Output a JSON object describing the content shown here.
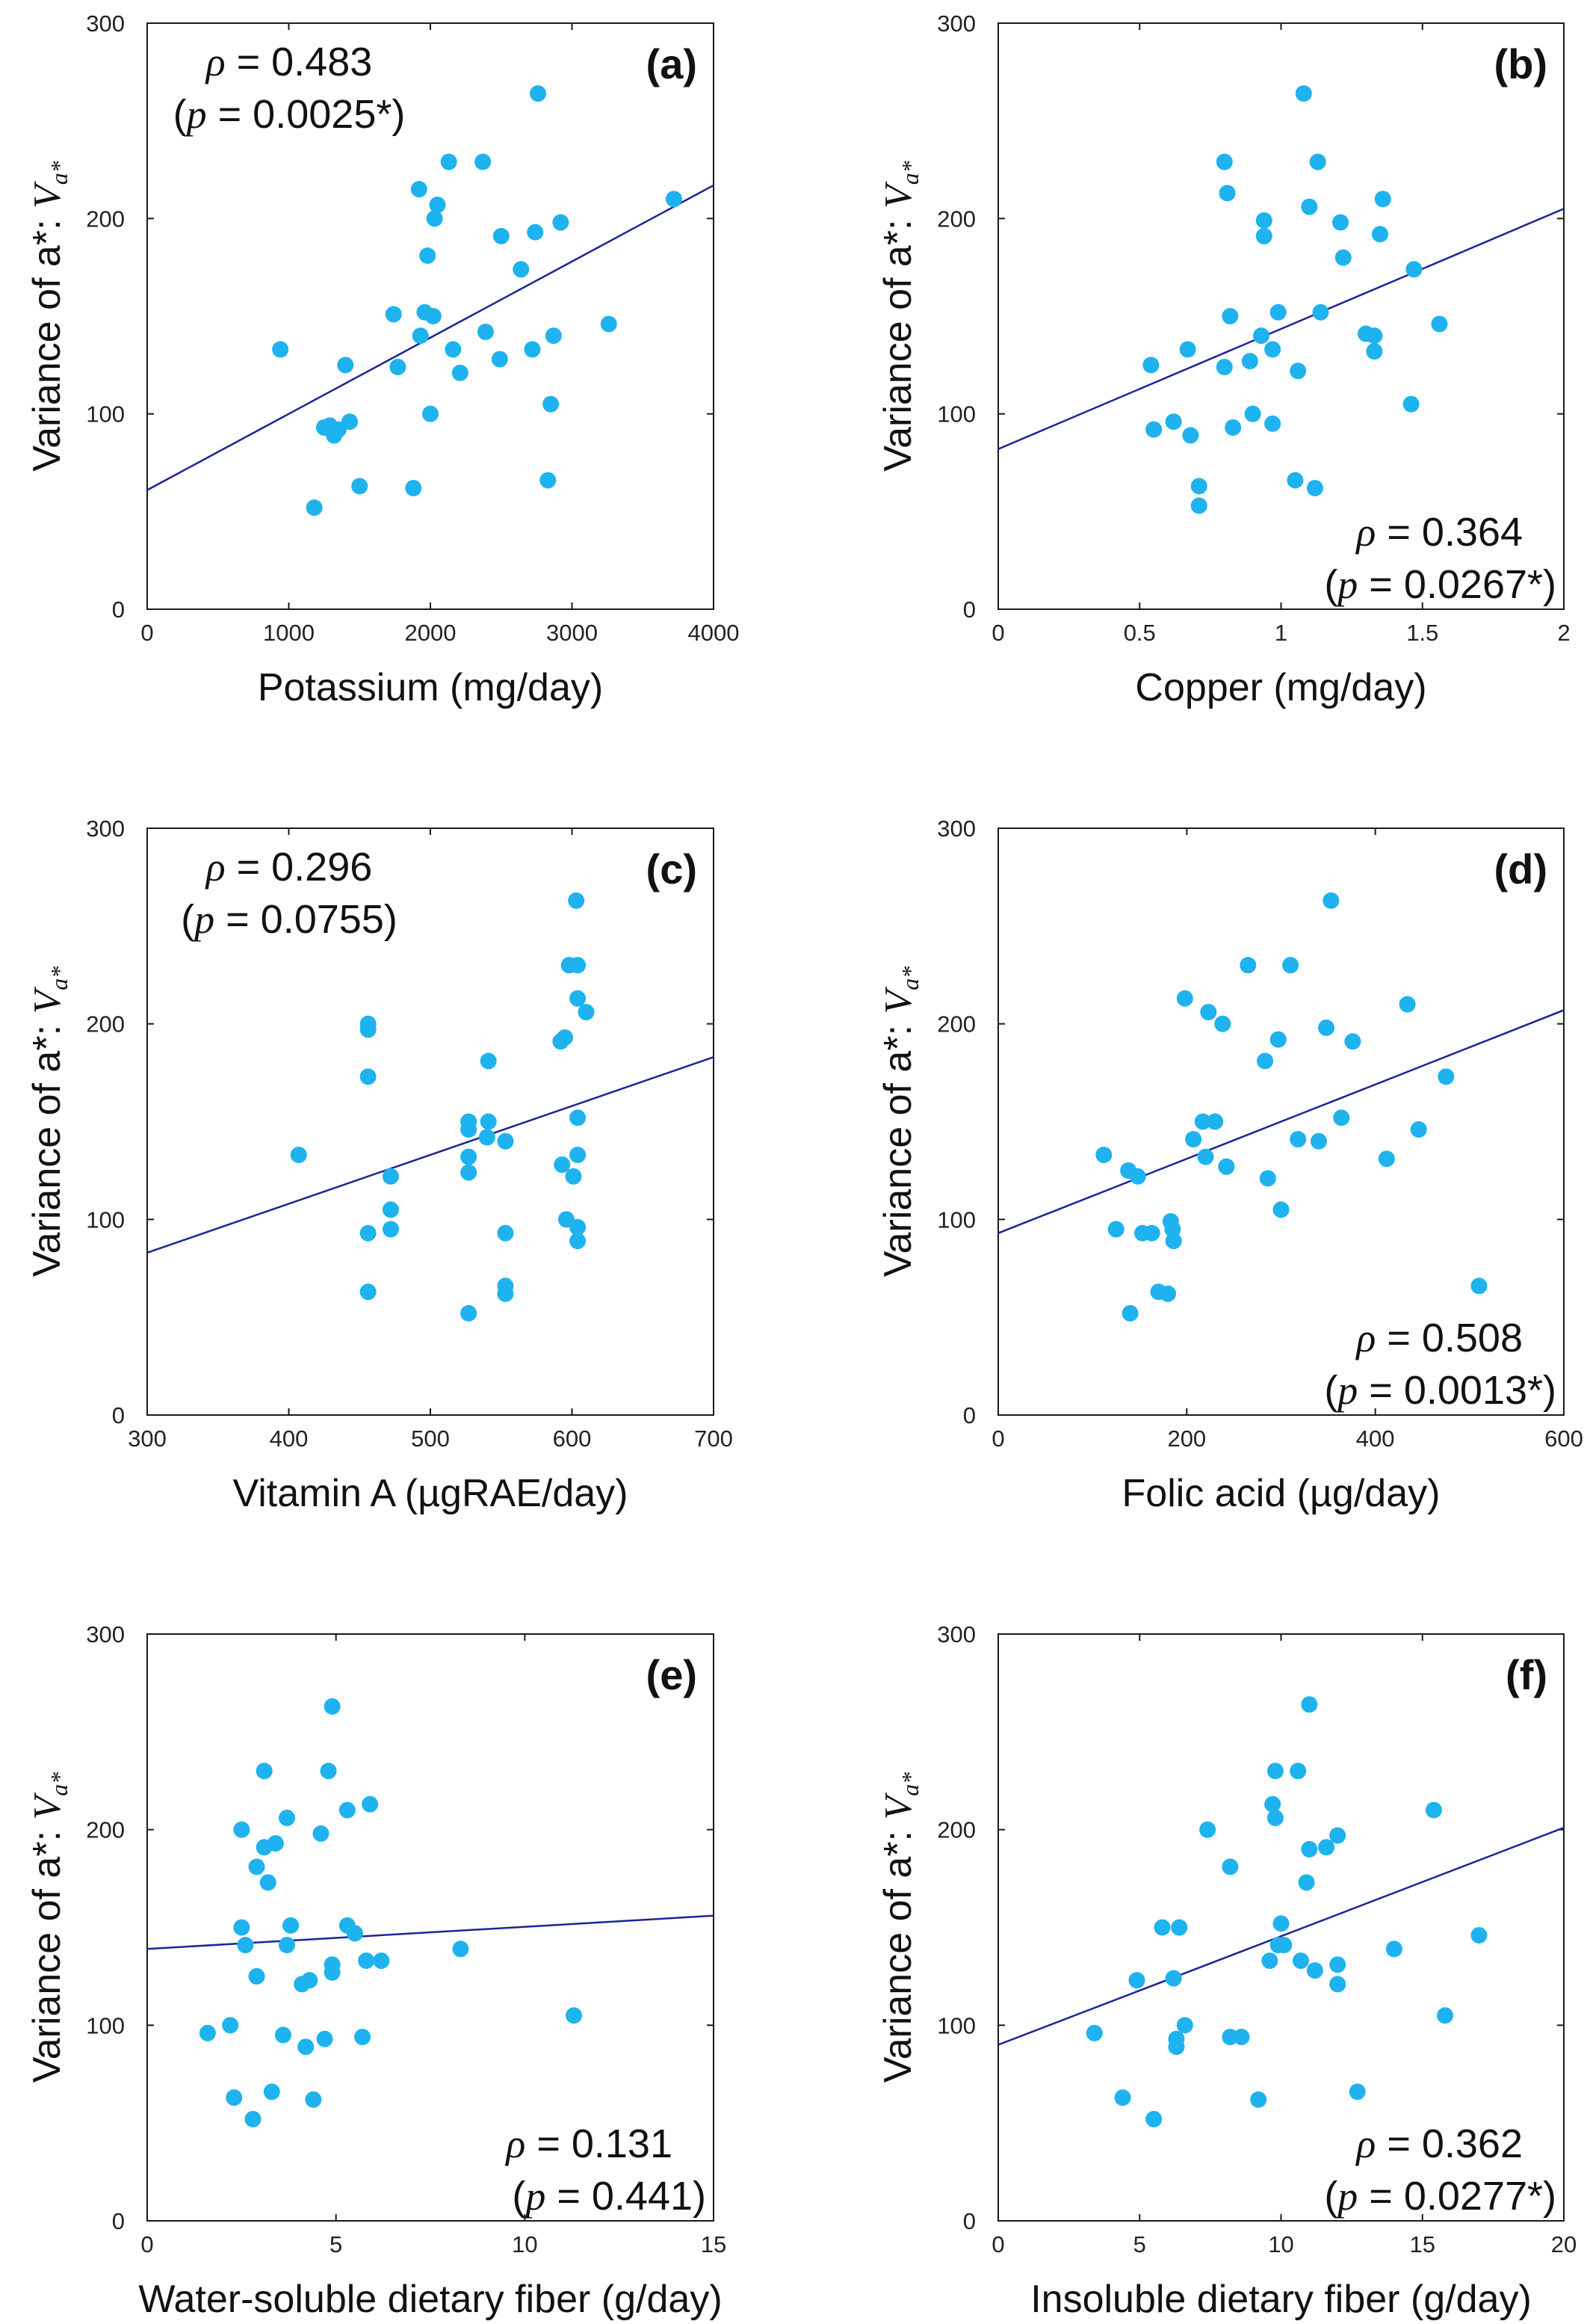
{
  "colors": {
    "points": "#1eb2ef",
    "fit_line": "#1c2596",
    "axes": "#1a1a1a",
    "text": "#111111"
  },
  "chart_data": [
    {
      "type": "scatter",
      "panel_label": "(a)",
      "xlabel": "Potassium (mg/day)",
      "ylabel": {
        "text": "Variance of a*: ",
        "symbol": "V",
        "subscript": "a*"
      },
      "xlim": [
        0,
        4000
      ],
      "ylim": [
        0,
        300
      ],
      "xticks": [
        0,
        1000,
        2000,
        3000,
        4000
      ],
      "xtick_labels": [
        "0",
        "1000",
        "2000",
        "3000",
        "4000"
      ],
      "yticks": [
        0,
        100,
        200,
        300
      ],
      "ytick_labels": [
        "0",
        "100",
        "200",
        "300"
      ],
      "fit_line": [
        [
          0,
          61
        ],
        [
          4000,
          217
        ]
      ],
      "annotation": {
        "rho_symbol": "ρ",
        "rho_rest": " = 0.483",
        "p_open": "(",
        "p_symbol": "p",
        "p_rest": " = 0.0025*)",
        "position": "top-left"
      },
      "points": [
        [
          940,
          133
        ],
        [
          1180,
          52
        ],
        [
          1250,
          93
        ],
        [
          1290,
          94
        ],
        [
          1320,
          89
        ],
        [
          1350,
          92
        ],
        [
          1400,
          125
        ],
        [
          1430,
          96
        ],
        [
          1500,
          63
        ],
        [
          1740,
          151
        ],
        [
          1770,
          124
        ],
        [
          1880,
          62
        ],
        [
          1920,
          215
        ],
        [
          1930,
          140
        ],
        [
          1960,
          152
        ],
        [
          1980,
          181
        ],
        [
          2000,
          100
        ],
        [
          2020,
          150
        ],
        [
          2030,
          200
        ],
        [
          2050,
          207
        ],
        [
          2130,
          229
        ],
        [
          2160,
          133
        ],
        [
          2210,
          121
        ],
        [
          2370,
          229
        ],
        [
          2390,
          142
        ],
        [
          2490,
          128
        ],
        [
          2500,
          191
        ],
        [
          2640,
          174
        ],
        [
          2720,
          133
        ],
        [
          2740,
          193
        ],
        [
          2760,
          264
        ],
        [
          2830,
          66
        ],
        [
          2850,
          105
        ],
        [
          2870,
          140
        ],
        [
          2920,
          198
        ],
        [
          3260,
          146
        ],
        [
          3720,
          210
        ]
      ]
    },
    {
      "type": "scatter",
      "panel_label": "(b)",
      "xlabel": "Copper (mg/day)",
      "ylabel": {
        "text": "Variance of a*: ",
        "symbol": "V",
        "subscript": "a*"
      },
      "xlim": [
        0,
        2
      ],
      "ylim": [
        0,
        300
      ],
      "xticks": [
        0,
        0.5,
        1,
        1.5,
        2
      ],
      "xtick_labels": [
        "0",
        "0.5",
        "1",
        "1.5",
        "2"
      ],
      "yticks": [
        0,
        100,
        200,
        300
      ],
      "ytick_labels": [
        "0",
        "100",
        "200",
        "300"
      ],
      "fit_line": [
        [
          0,
          82
        ],
        [
          2,
          205
        ]
      ],
      "annotation": {
        "rho_symbol": "ρ",
        "rho_rest": " = 0.364",
        "p_open": "(",
        "p_symbol": "p",
        "p_rest": " = 0.0267*)",
        "position": "bottom-right"
      },
      "points": [
        [
          0.54,
          125
        ],
        [
          0.55,
          92
        ],
        [
          0.62,
          96
        ],
        [
          0.67,
          133
        ],
        [
          0.68,
          89
        ],
        [
          0.71,
          63
        ],
        [
          0.71,
          53
        ],
        [
          0.8,
          229
        ],
        [
          0.8,
          124
        ],
        [
          0.81,
          213
        ],
        [
          0.82,
          150
        ],
        [
          0.83,
          93
        ],
        [
          0.89,
          127
        ],
        [
          0.9,
          100
        ],
        [
          0.93,
          140
        ],
        [
          0.94,
          199
        ],
        [
          0.94,
          191
        ],
        [
          0.97,
          133
        ],
        [
          0.97,
          95
        ],
        [
          0.99,
          152
        ],
        [
          1.05,
          66
        ],
        [
          1.06,
          122
        ],
        [
          1.08,
          264
        ],
        [
          1.1,
          206
        ],
        [
          1.12,
          62
        ],
        [
          1.13,
          229
        ],
        [
          1.14,
          152
        ],
        [
          1.21,
          198
        ],
        [
          1.22,
          180
        ],
        [
          1.3,
          141
        ],
        [
          1.33,
          132
        ],
        [
          1.33,
          140
        ],
        [
          1.35,
          192
        ],
        [
          1.36,
          210
        ],
        [
          1.46,
          105
        ],
        [
          1.47,
          174
        ],
        [
          1.56,
          146
        ]
      ]
    },
    {
      "type": "scatter",
      "panel_label": "(c)",
      "xlabel": "Vitamin A (µgRAE/day)",
      "ylabel": {
        "text": "Variance of a*: ",
        "symbol": "V",
        "subscript": "a*"
      },
      "xlim": [
        300,
        700
      ],
      "ylim": [
        0,
        300
      ],
      "xticks": [
        300,
        400,
        500,
        600,
        700
      ],
      "xtick_labels": [
        "300",
        "400",
        "500",
        "600",
        "700"
      ],
      "yticks": [
        0,
        100,
        200,
        300
      ],
      "ytick_labels": [
        "0",
        "100",
        "200",
        "300"
      ],
      "fit_line": [
        [
          300,
          83
        ],
        [
          700,
          183
        ]
      ],
      "annotation": {
        "rho_symbol": "ρ",
        "rho_rest": " = 0.296",
        "p_open": "(",
        "p_symbol": "p",
        "p_rest": " = 0.0755)",
        "position": "top-left"
      },
      "points": [
        [
          407,
          133
        ],
        [
          456,
          200
        ],
        [
          456,
          197
        ],
        [
          456,
          173
        ],
        [
          456,
          93
        ],
        [
          456,
          63
        ],
        [
          472,
          122
        ],
        [
          472,
          105
        ],
        [
          472,
          95
        ],
        [
          527,
          150
        ],
        [
          527,
          146
        ],
        [
          527,
          132
        ],
        [
          527,
          124
        ],
        [
          527,
          52
        ],
        [
          540,
          142
        ],
        [
          541,
          181
        ],
        [
          541,
          150
        ],
        [
          553,
          140
        ],
        [
          553,
          93
        ],
        [
          553,
          66
        ],
        [
          553,
          62
        ],
        [
          592,
          191
        ],
        [
          593,
          128
        ],
        [
          595,
          193
        ],
        [
          596,
          100
        ],
        [
          598,
          230
        ],
        [
          601,
          122
        ],
        [
          603,
          263
        ],
        [
          604,
          230
        ],
        [
          604,
          213
        ],
        [
          604,
          152
        ],
        [
          604,
          133
        ],
        [
          604,
          96
        ],
        [
          604,
          89
        ],
        [
          610,
          206
        ]
      ]
    },
    {
      "type": "scatter",
      "panel_label": "(d)",
      "xlabel": "Folic acid (µg/day)",
      "ylabel": {
        "text": "Variance of a*: ",
        "symbol": "V",
        "subscript": "a*"
      },
      "xlim": [
        0,
        600
      ],
      "ylim": [
        0,
        300
      ],
      "xticks": [
        0,
        200,
        400,
        600
      ],
      "xtick_labels": [
        "0",
        "200",
        "400",
        "600"
      ],
      "yticks": [
        0,
        100,
        200,
        300
      ],
      "ytick_labels": [
        "0",
        "100",
        "200",
        "300"
      ],
      "fit_line": [
        [
          0,
          93
        ],
        [
          600,
          207
        ]
      ],
      "annotation": {
        "rho_symbol": "ρ",
        "rho_rest": " = 0.508",
        "p_open": "(",
        "p_symbol": "p",
        "p_rest": " = 0.0013*)",
        "position": "bottom-right"
      },
      "points": [
        [
          112,
          133
        ],
        [
          125,
          95
        ],
        [
          138,
          125
        ],
        [
          140,
          52
        ],
        [
          148,
          122
        ],
        [
          153,
          93
        ],
        [
          163,
          93
        ],
        [
          170,
          63
        ],
        [
          180,
          62
        ],
        [
          183,
          99
        ],
        [
          185,
          95
        ],
        [
          186,
          89
        ],
        [
          198,
          213
        ],
        [
          207,
          141
        ],
        [
          217,
          150
        ],
        [
          220,
          132
        ],
        [
          223,
          206
        ],
        [
          230,
          150
        ],
        [
          238,
          200
        ],
        [
          242,
          127
        ],
        [
          265,
          230
        ],
        [
          283,
          181
        ],
        [
          286,
          121
        ],
        [
          297,
          192
        ],
        [
          300,
          105
        ],
        [
          310,
          230
        ],
        [
          318,
          141
        ],
        [
          340,
          140
        ],
        [
          348,
          198
        ],
        [
          353,
          263
        ],
        [
          364,
          152
        ],
        [
          376,
          191
        ],
        [
          412,
          131
        ],
        [
          434,
          210
        ],
        [
          446,
          146
        ],
        [
          475,
          173
        ],
        [
          510,
          66
        ]
      ]
    },
    {
      "type": "scatter",
      "panel_label": "(e)",
      "xlabel": "Water-soluble dietary fiber (g/day)",
      "ylabel": {
        "text": "Variance of a*: ",
        "symbol": "V",
        "subscript": "a*"
      },
      "xlim": [
        0,
        15
      ],
      "ylim": [
        0,
        300
      ],
      "xticks": [
        0,
        5,
        10,
        15
      ],
      "xtick_labels": [
        "0",
        "5",
        "10",
        "15"
      ],
      "yticks": [
        0,
        100,
        200,
        300
      ],
      "ytick_labels": [
        "0",
        "100",
        "200",
        "300"
      ],
      "fit_line": [
        [
          0,
          139
        ],
        [
          15,
          156
        ]
      ],
      "annotation": {
        "rho_symbol": "ρ",
        "rho_rest": " = 0.131",
        "p_open": "(",
        "p_symbol": "p",
        "p_rest": " = 0.441)",
        "position": "bottom-right"
      },
      "points": [
        [
          1.6,
          96
        ],
        [
          2.2,
          100
        ],
        [
          2.3,
          63
        ],
        [
          2.5,
          150
        ],
        [
          2.5,
          200
        ],
        [
          2.6,
          141
        ],
        [
          2.8,
          52
        ],
        [
          2.9,
          181
        ],
        [
          2.9,
          125
        ],
        [
          3.1,
          230
        ],
        [
          3.1,
          191
        ],
        [
          3.2,
          173
        ],
        [
          3.3,
          66
        ],
        [
          3.4,
          193
        ],
        [
          3.6,
          95
        ],
        [
          3.7,
          141
        ],
        [
          3.7,
          206
        ],
        [
          3.8,
          151
        ],
        [
          4.1,
          121
        ],
        [
          4.2,
          89
        ],
        [
          4.3,
          123
        ],
        [
          4.4,
          62
        ],
        [
          4.6,
          198
        ],
        [
          4.7,
          93
        ],
        [
          4.8,
          230
        ],
        [
          4.9,
          263
        ],
        [
          4.9,
          131
        ],
        [
          4.9,
          127
        ],
        [
          5.3,
          210
        ],
        [
          5.3,
          151
        ],
        [
          5.5,
          147
        ],
        [
          5.7,
          94
        ],
        [
          5.8,
          133
        ],
        [
          5.9,
          213
        ],
        [
          6.2,
          133
        ],
        [
          8.3,
          139
        ],
        [
          11.3,
          105
        ]
      ]
    },
    {
      "type": "scatter",
      "panel_label": "(f)",
      "xlabel": "Insoluble dietary fiber (g/day)",
      "ylabel": {
        "text": "Variance of a*: ",
        "symbol": "V",
        "subscript": "a*"
      },
      "xlim": [
        0,
        20
      ],
      "ylim": [
        0,
        300
      ],
      "xticks": [
        0,
        5,
        10,
        15,
        20
      ],
      "xtick_labels": [
        "0",
        "5",
        "10",
        "15",
        "20"
      ],
      "yticks": [
        0,
        100,
        200,
        300
      ],
      "ytick_labels": [
        "0",
        "100",
        "200",
        "300"
      ],
      "fit_line": [
        [
          0,
          90
        ],
        [
          20,
          201
        ]
      ],
      "annotation": {
        "rho_symbol": "ρ",
        "rho_rest": " = 0.362",
        "p_open": "(",
        "p_symbol": "p",
        "p_rest": " = 0.0277*)",
        "position": "bottom-right"
      },
      "points": [
        [
          3.4,
          96
        ],
        [
          4.4,
          63
        ],
        [
          4.9,
          123
        ],
        [
          5.5,
          52
        ],
        [
          5.8,
          150
        ],
        [
          6.2,
          124
        ],
        [
          6.3,
          89
        ],
        [
          6.3,
          93
        ],
        [
          6.4,
          150
        ],
        [
          6.6,
          100
        ],
        [
          7.4,
          200
        ],
        [
          8.2,
          181
        ],
        [
          8.2,
          94
        ],
        [
          8.6,
          94
        ],
        [
          9.2,
          62
        ],
        [
          9.6,
          133
        ],
        [
          9.7,
          213
        ],
        [
          9.8,
          230
        ],
        [
          9.8,
          206
        ],
        [
          9.9,
          141
        ],
        [
          10.0,
          152
        ],
        [
          10.1,
          141
        ],
        [
          10.6,
          230
        ],
        [
          10.7,
          133
        ],
        [
          10.9,
          173
        ],
        [
          11.0,
          264
        ],
        [
          11.0,
          190
        ],
        [
          11.2,
          128
        ],
        [
          11.6,
          191
        ],
        [
          12.0,
          197
        ],
        [
          12.0,
          131
        ],
        [
          12.0,
          121
        ],
        [
          12.7,
          66
        ],
        [
          14.0,
          139
        ],
        [
          15.4,
          210
        ],
        [
          15.8,
          105
        ],
        [
          17.0,
          146
        ]
      ]
    }
  ]
}
